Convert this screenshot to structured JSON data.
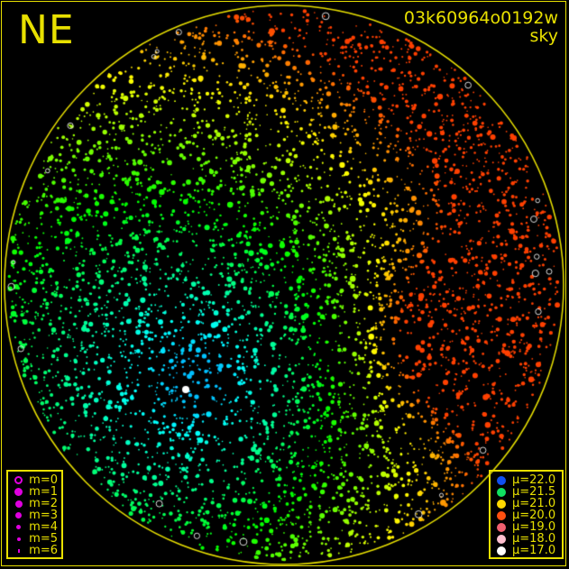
{
  "header": {
    "direction": "NE",
    "image_id": "03k60964o0192w",
    "mode": "sky"
  },
  "magnitude_legend": [
    {
      "label": "m=0",
      "size": 9,
      "hollow": true
    },
    {
      "label": "m=1",
      "size": 9
    },
    {
      "label": "m=2",
      "size": 8
    },
    {
      "label": "m=3",
      "size": 7
    },
    {
      "label": "m=4",
      "size": 5
    },
    {
      "label": "m=5",
      "size": 4
    },
    {
      "label": "m=6",
      "size": 3
    }
  ],
  "brightness_legend": [
    {
      "label": "μ=22.0",
      "color": "#1050f0"
    },
    {
      "label": "μ=21.5",
      "color": "#10e060"
    },
    {
      "label": "μ=21.0",
      "color": "#ffd800"
    },
    {
      "label": "μ=20.0",
      "color": "#ff5010"
    },
    {
      "label": "μ=19.0",
      "color": "#f06070"
    },
    {
      "label": "μ=18.0",
      "color": "#ffc0d0"
    },
    {
      "label": "μ=17.0",
      "color": "#ffffff"
    }
  ],
  "colors": {
    "frame": "#e8e000",
    "legend_symbol": "#e000e0",
    "background": "#000000"
  }
}
